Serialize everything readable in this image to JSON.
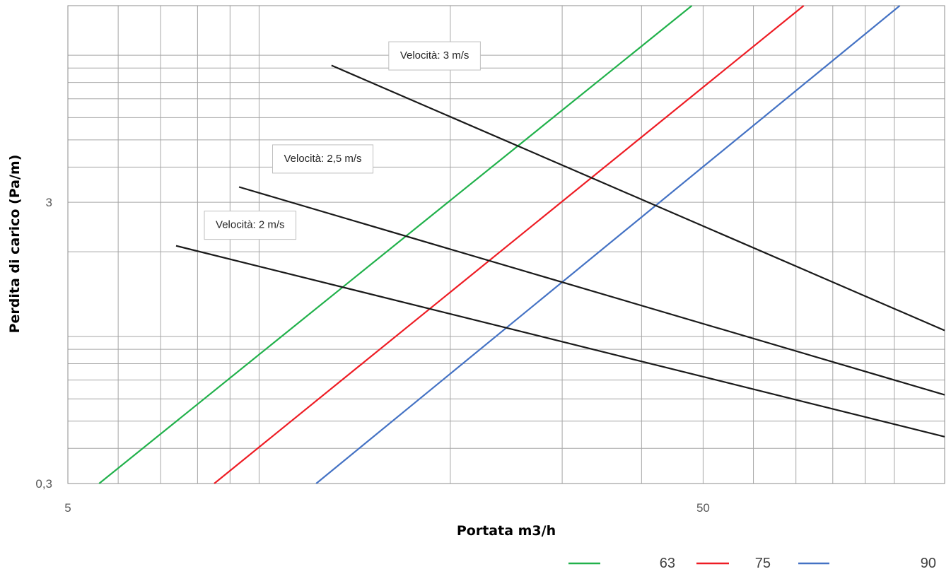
{
  "chart_data": {
    "type": "line",
    "title": "",
    "xlabel": "Portata m3/h",
    "ylabel": "Perdita di carico (Pa/m)",
    "x_scale": "log",
    "y_scale": "log",
    "xlim": [
      5,
      120
    ],
    "ylim": [
      0.3,
      15
    ],
    "x_tick_labels": [
      "5",
      "50"
    ],
    "y_tick_labels": [
      "0,3",
      "3"
    ],
    "x_tick_values": [
      5,
      50
    ],
    "y_tick_values": [
      0.3,
      3
    ],
    "grid": true,
    "legend_position": "bottom-right",
    "series": [
      {
        "name": "63",
        "color": "#21b14b",
        "x": [
          5.6,
          48
        ],
        "y": [
          0.3,
          15
        ]
      },
      {
        "name": "75",
        "color": "#ee1c24",
        "x": [
          8.5,
          72
        ],
        "y": [
          0.3,
          15
        ]
      },
      {
        "name": "90",
        "color": "#4472c4",
        "x": [
          12.3,
          102
        ],
        "y": [
          0.3,
          15
        ]
      },
      {
        "name": "",
        "color": "#1a1a1a",
        "x": [
          13,
          120
        ],
        "y": [
          9.2,
          1.05
        ]
      },
      {
        "name": "",
        "color": "#1a1a1a",
        "x": [
          9.3,
          120
        ],
        "y": [
          3.4,
          0.62
        ]
      },
      {
        "name": "",
        "color": "#1a1a1a",
        "x": [
          7.4,
          120
        ],
        "y": [
          2.1,
          0.44
        ]
      }
    ],
    "annotations": [
      {
        "text": "Velocità: 3 m/s",
        "x": 16,
        "y": 10
      },
      {
        "text": "Velocità: 2,5 m/s",
        "x": 10.5,
        "y": 4.3
      },
      {
        "text": "Velocità: 2 m/s",
        "x": 8.2,
        "y": 2.5
      }
    ]
  }
}
